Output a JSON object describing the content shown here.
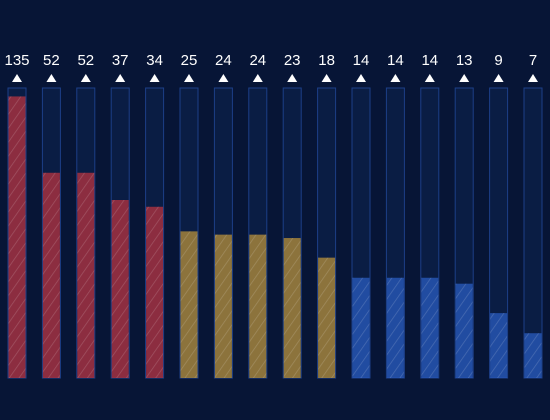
{
  "chart_data": {
    "type": "bar",
    "values": [
      135,
      52,
      52,
      37,
      34,
      25,
      24,
      24,
      23,
      18,
      14,
      14,
      14,
      13,
      9,
      7
    ],
    "colors": [
      "#b8333f",
      "#b8333f",
      "#b8333f",
      "#b8333f",
      "#b8333f",
      "#b8903a",
      "#b8903a",
      "#b8903a",
      "#b8903a",
      "#b8903a",
      "#2a5cc0",
      "#2a5cc0",
      "#2a5cc0",
      "#2a5cc0",
      "#2a5cc0",
      "#2a5cc0"
    ],
    "log_scale": true,
    "ylim": [
      4,
      150
    ]
  }
}
